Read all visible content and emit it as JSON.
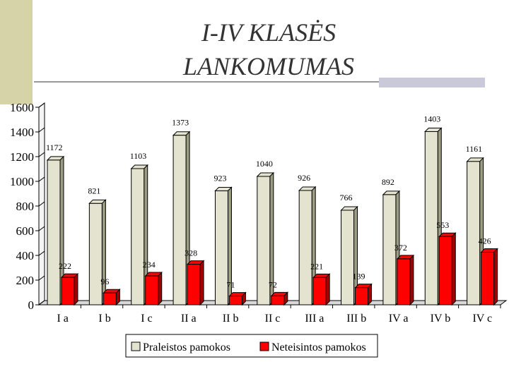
{
  "title_lines": [
    "I-IV KLASĖS",
    "LANKOMUMAS"
  ],
  "chart_data": {
    "type": "bar",
    "title": "I-IV KLASĖS LANKOMUMAS",
    "categories": [
      "I a",
      "I b",
      "I c",
      "II a",
      "II b",
      "II c",
      "III a",
      "III b",
      "IV a",
      "IV b",
      "IV c"
    ],
    "series": [
      {
        "name": "Praleistos pamokos",
        "color": "#e3e3cf",
        "values": [
          1172,
          821,
          1103,
          1373,
          923,
          1040,
          926,
          766,
          892,
          1403,
          1161
        ]
      },
      {
        "name": "Neteisintos pamokos",
        "color": "#ff0000",
        "values": [
          222,
          96,
          234,
          328,
          71,
          72,
          221,
          139,
          372,
          553,
          426
        ]
      }
    ],
    "value_labels": [
      [
        "1172",
        "821",
        "1103",
        "1373",
        "923",
        "1040",
        "926",
        "766",
        "892",
        "1403",
        "1161"
      ],
      [
        "222",
        "96",
        "234",
        "328",
        "71",
        "72",
        "221",
        "139",
        "372",
        "553",
        "426"
      ]
    ],
    "yticks": [
      0,
      200,
      400,
      600,
      800,
      1000,
      1200,
      1400,
      1600
    ],
    "ylim": [
      0,
      1600
    ],
    "xlabel": "",
    "ylabel": "",
    "legend_position": "bottom",
    "grid": false
  }
}
